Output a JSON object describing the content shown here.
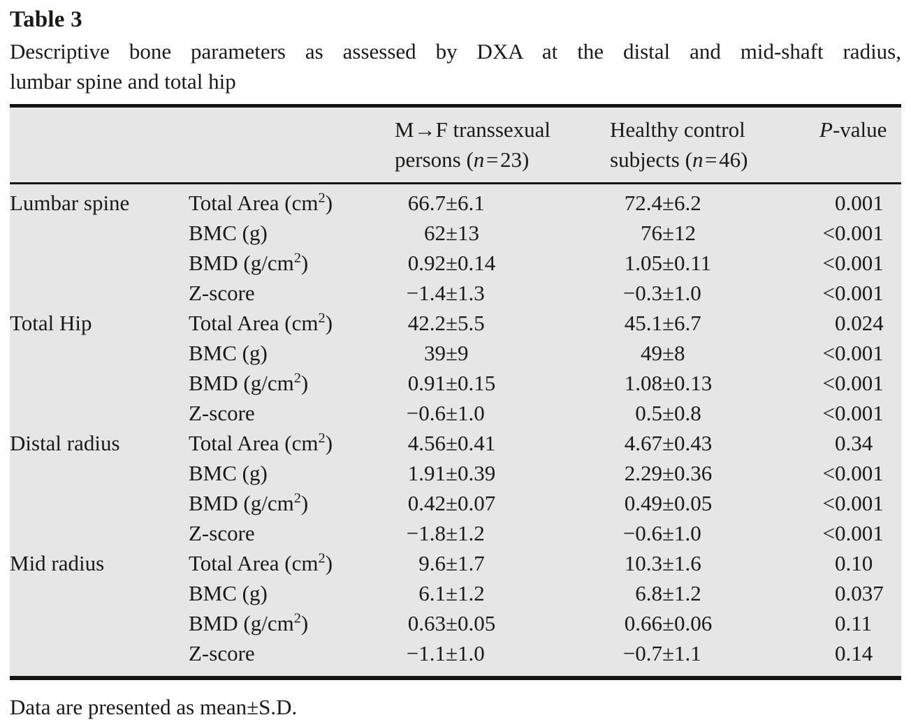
{
  "table_label": "Table 3",
  "caption_lines": [
    "Descriptive bone parameters as assessed by DXA at the distal and mid-shaft radius,",
    "lumbar spine and total hip"
  ],
  "columns": {
    "group1": {
      "line1": "M→F transsexual",
      "line2": "persons (n=23)"
    },
    "group2": {
      "line1": "Healthy control",
      "line2": "subjects (n=46)"
    },
    "pvalue": "P-value"
  },
  "sections": [
    {
      "region": "Lumbar spine",
      "rows": [
        {
          "parameter": "Total Area (cm²)",
          "g1": "66.7±6.1",
          "g2": "72.4±6.2",
          "p": "0.001"
        },
        {
          "parameter": "BMC (g)",
          "g1": "62±13",
          "g2": "76±12",
          "p": "<0.001"
        },
        {
          "parameter": "BMD (g/cm²)",
          "g1": "0.92±0.14",
          "g2": "1.05±0.11",
          "p": "<0.001"
        },
        {
          "parameter": "Z-score",
          "g1": "−1.4±1.3",
          "g2": "−0.3±1.0",
          "p": "<0.001"
        }
      ]
    },
    {
      "region": "Total Hip",
      "rows": [
        {
          "parameter": "Total Area (cm²)",
          "g1": "42.2±5.5",
          "g2": "45.1±6.7",
          "p": "0.024"
        },
        {
          "parameter": "BMC (g)",
          "g1": "39±9",
          "g2": "49±8",
          "p": "<0.001"
        },
        {
          "parameter": "BMD (g/cm²)",
          "g1": "0.91±0.15",
          "g2": "1.08±0.13",
          "p": "<0.001"
        },
        {
          "parameter": "Z-score",
          "g1": "−0.6±1.0",
          "g2": "0.5±0.8",
          "p": "<0.001"
        }
      ]
    },
    {
      "region": "Distal radius",
      "rows": [
        {
          "parameter": "Total Area (cm²)",
          "g1": "4.56±0.41",
          "g2": "4.67±0.43",
          "p": "0.34"
        },
        {
          "parameter": "BMC (g)",
          "g1": "1.91±0.39",
          "g2": "2.29±0.36",
          "p": "<0.001"
        },
        {
          "parameter": "BMD (g/cm²)",
          "g1": "0.42±0.07",
          "g2": "0.49±0.05",
          "p": "<0.001"
        },
        {
          "parameter": "Z-score",
          "g1": "−1.8±1.2",
          "g2": "−0.6±1.0",
          "p": "<0.001"
        }
      ]
    },
    {
      "region": "Mid radius",
      "rows": [
        {
          "parameter": "Total Area (cm²)",
          "g1": "9.6±1.7",
          "g2": "10.3±1.6",
          "p": "0.10"
        },
        {
          "parameter": "BMC (g)",
          "g1": "6.1±1.2",
          "g2": "6.8±1.2",
          "p": "0.037"
        },
        {
          "parameter": "BMD (g/cm²)",
          "g1": "0.63±0.05",
          "g2": "0.66±0.06",
          "p": "0.11"
        },
        {
          "parameter": "Z-score",
          "g1": "−1.1±1.0",
          "g2": "−0.7±1.1",
          "p": "0.14"
        }
      ]
    }
  ],
  "footnote": "Data are presented as mean±S.D.",
  "colors": {
    "table_bg": "#e6e6e6",
    "text": "#1b1a19",
    "rule": "#161412"
  }
}
